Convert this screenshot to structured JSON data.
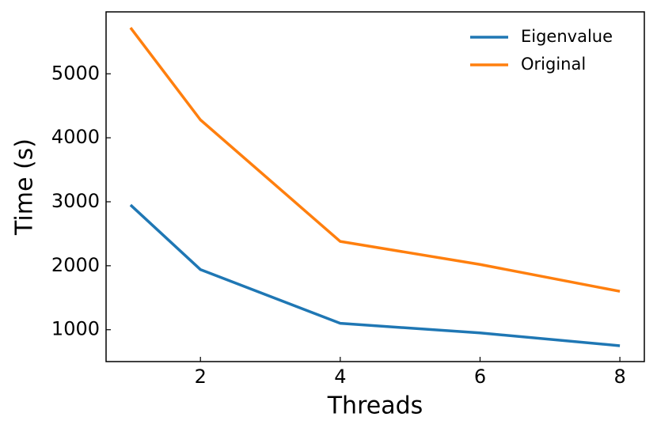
{
  "chart_data": {
    "type": "line",
    "x_label": "Threads",
    "y_label": "Time (s)",
    "x": [
      1,
      2,
      4,
      6,
      8
    ],
    "series": [
      {
        "name": "Eigenvalue",
        "color": "#1f77b4",
        "values": [
          2950,
          1940,
          1100,
          950,
          750
        ]
      },
      {
        "name": "Original",
        "color": "#ff7f0e",
        "values": [
          5720,
          4280,
          2380,
          2020,
          1600
        ]
      }
    ],
    "xlim": [
      0.65,
      8.35
    ],
    "xticks": [
      2,
      4,
      6,
      8
    ],
    "ylim": [
      502,
      5968
    ],
    "yticks": [
      1000,
      2000,
      3000,
      4000,
      5000
    ],
    "legend": "upper right"
  }
}
